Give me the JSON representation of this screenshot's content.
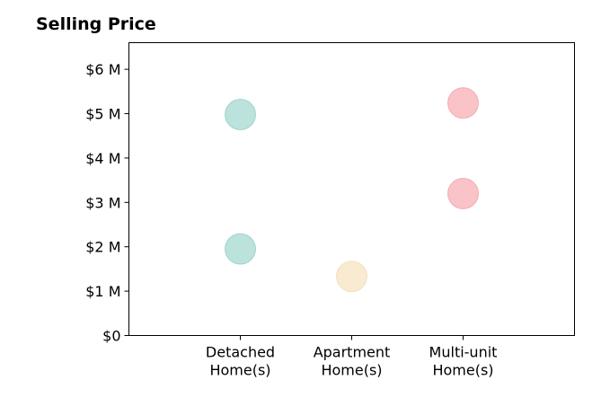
{
  "chart_data": {
    "type": "scatter",
    "title": "Selling Price",
    "xlabel": "",
    "ylabel": "",
    "categories": [
      [
        "Detached",
        "Home(s)"
      ],
      [
        "Apartment",
        "Home(s)"
      ],
      [
        "Multi-unit",
        "Home(s)"
      ]
    ],
    "xlim": [
      -1,
      3
    ],
    "ylim": [
      0,
      6.6
    ],
    "yticks": [
      0,
      1,
      2,
      3,
      4,
      5,
      6
    ],
    "ytick_labels": [
      "$0",
      "$1 M",
      "$2 M",
      "$3 M",
      "$4 M",
      "$5 M",
      "$6 M"
    ],
    "grid": false,
    "points": [
      {
        "category_index": 0,
        "value": 1.95,
        "color": "#9ed6cf"
      },
      {
        "category_index": 0,
        "value": 4.98,
        "color": "#9ed6cf"
      },
      {
        "category_index": 1,
        "value": 1.33,
        "color": "#f6e2bf"
      },
      {
        "category_index": 2,
        "value": 3.2,
        "color": "#f6a9b0"
      },
      {
        "category_index": 2,
        "value": 5.24,
        "color": "#f6a9b0"
      }
    ],
    "edge_colors": [
      "#7cc3ba",
      "#efd2a3",
      "#ee8e96"
    ]
  }
}
